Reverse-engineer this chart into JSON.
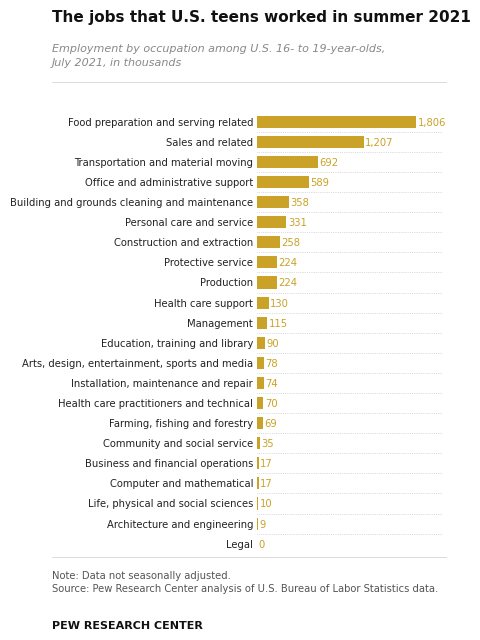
{
  "title": "The jobs that U.S. teens worked in summer 2021",
  "subtitle": "Employment by occupation among U.S. 16- to 19-year-olds,\nJuly 2021, in thousands",
  "note": "Note: Data not seasonally adjusted.\nSource: Pew Research Center analysis of U.S. Bureau of Labor Statistics data.",
  "footer": "PEW RESEARCH CENTER",
  "categories": [
    "Food preparation and serving related",
    "Sales and related",
    "Transportation and material moving",
    "Office and administrative support",
    "Building and grounds cleaning and maintenance",
    "Personal care and service",
    "Construction and extraction",
    "Protective service",
    "Production",
    "Health care support",
    "Management",
    "Education, training and library",
    "Arts, design, entertainment, sports and media",
    "Installation, maintenance and repair",
    "Health care practitioners and technical",
    "Farming, fishing and forestry",
    "Community and social service",
    "Business and financial operations",
    "Computer and mathematical",
    "Life, physical and social sciences",
    "Architecture and engineering",
    "Legal"
  ],
  "values": [
    1806,
    1207,
    692,
    589,
    358,
    331,
    258,
    224,
    224,
    130,
    115,
    90,
    78,
    74,
    70,
    69,
    35,
    17,
    17,
    10,
    9,
    0
  ],
  "bar_color": "#C9A227",
  "value_color": "#C9A227",
  "label_color": "#222222",
  "background_color": "#ffffff",
  "title_color": "#111111",
  "subtitle_color": "#888888",
  "note_color": "#555555",
  "footer_color": "#111111",
  "xlim": [
    0,
    2100
  ]
}
